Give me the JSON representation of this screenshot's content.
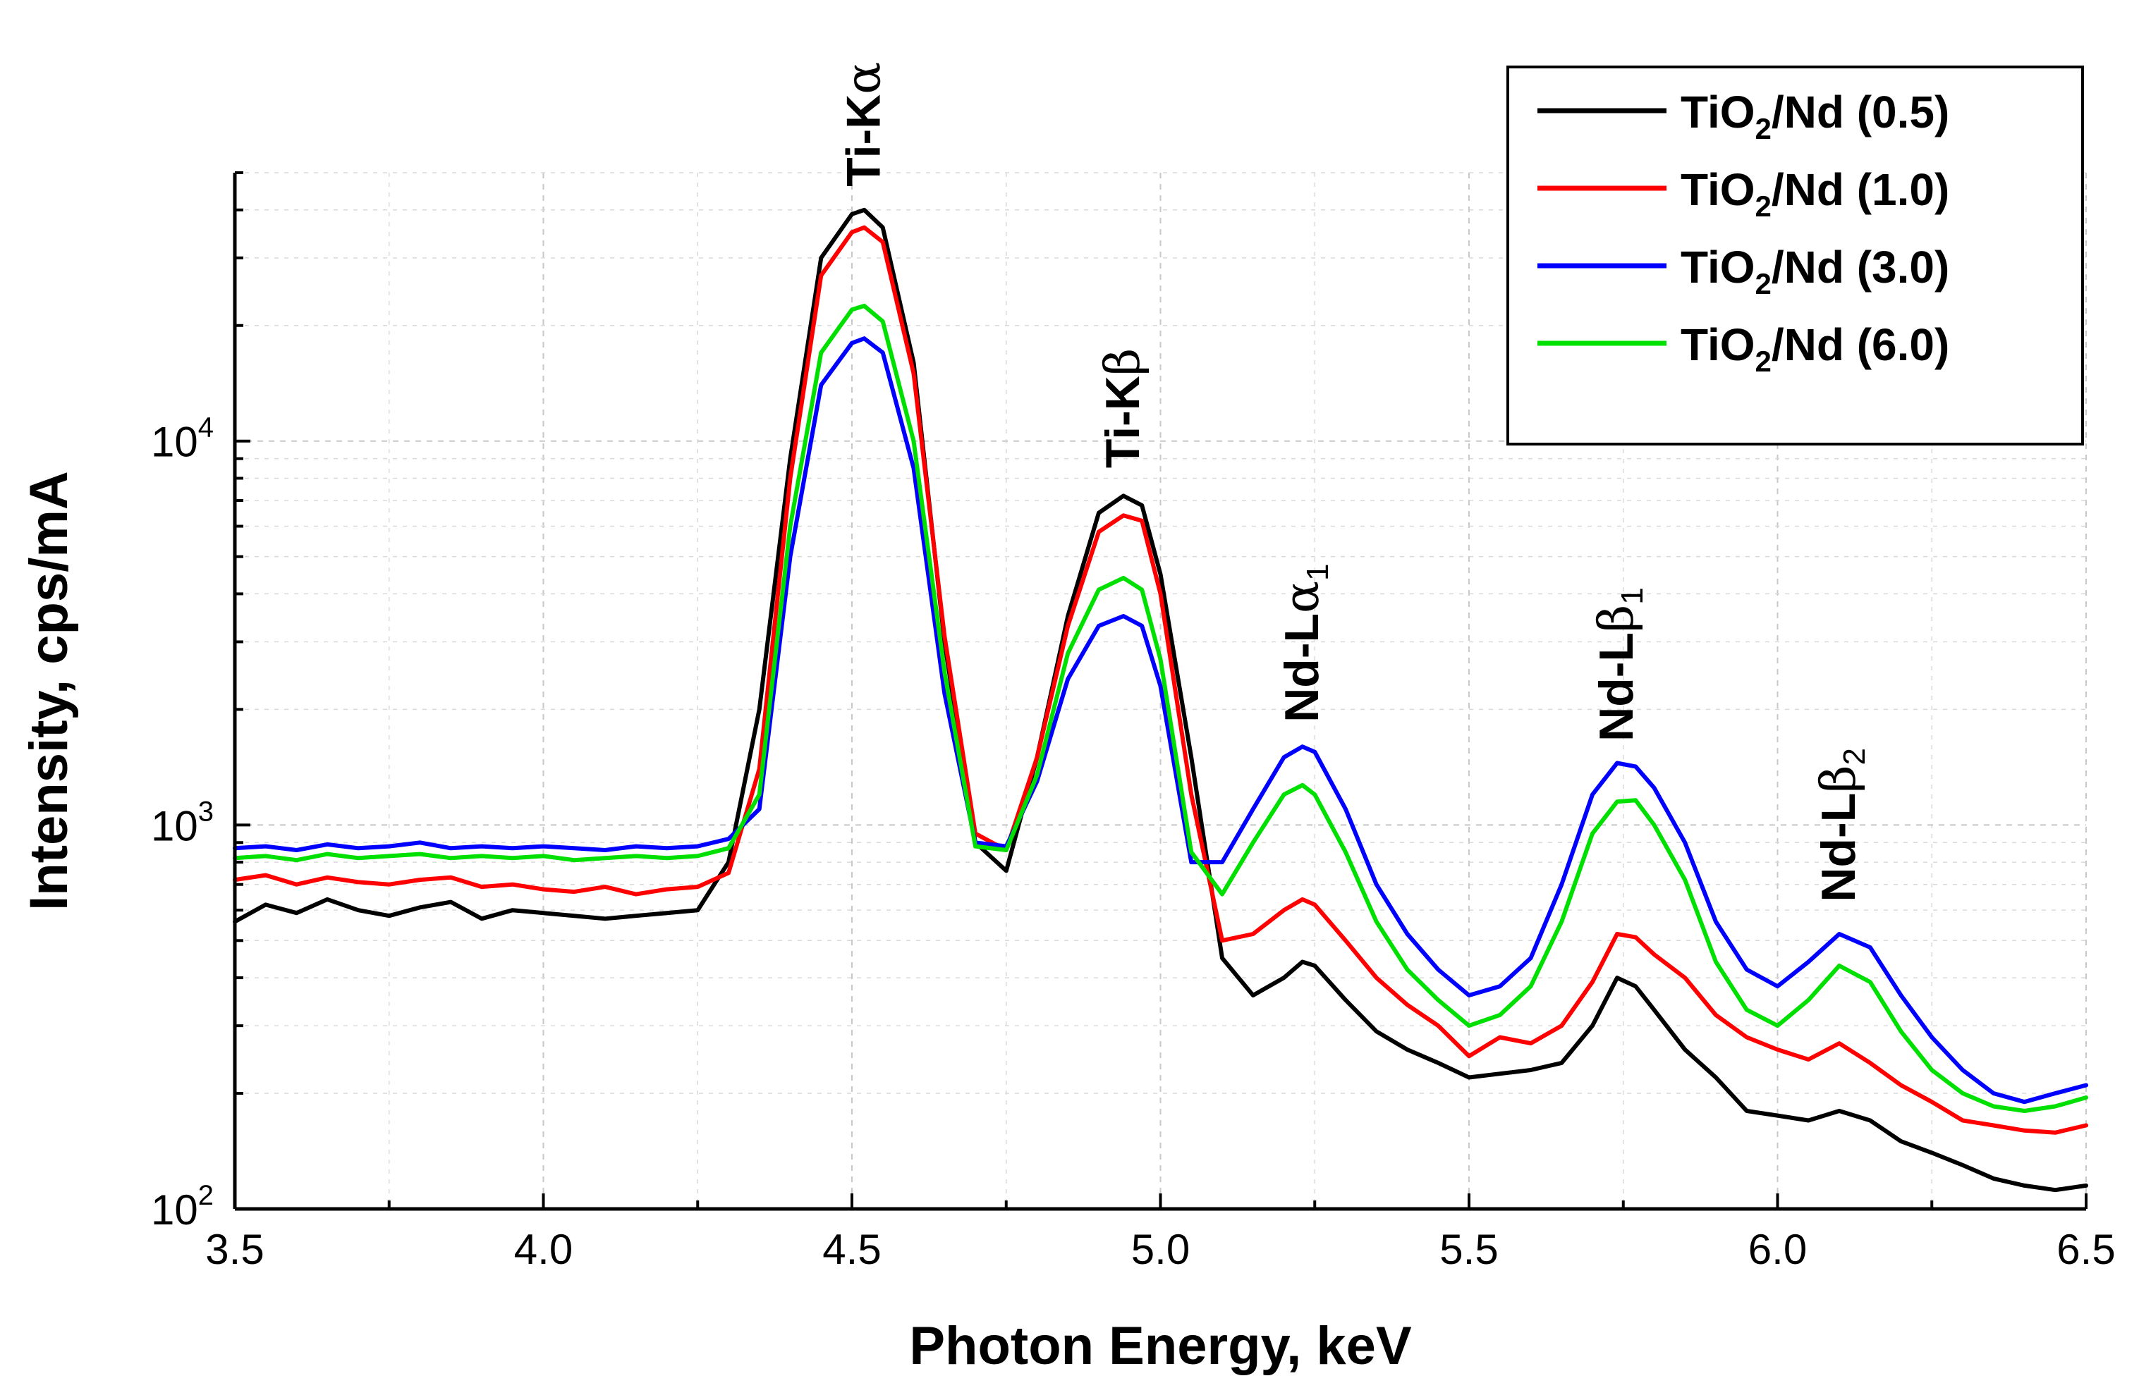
{
  "chart_data": {
    "type": "line",
    "title": "",
    "xlabel": "Photon Energy, keV",
    "ylabel": "Intensity, cps/mA",
    "xlim": [
      3.5,
      6.5
    ],
    "ylim": [
      100,
      50000
    ],
    "yscale": "log",
    "grid": true,
    "legend_position": "top-right",
    "x_ticks": [
      {
        "value": 3.5,
        "label": "3.5"
      },
      {
        "value": 4.0,
        "label": "4.0"
      },
      {
        "value": 4.5,
        "label": "4.5"
      },
      {
        "value": 5.0,
        "label": "5.0"
      },
      {
        "value": 5.5,
        "label": "5.5"
      },
      {
        "value": 6.0,
        "label": "6.0"
      },
      {
        "value": 6.5,
        "label": "6.5"
      }
    ],
    "y_ticks": [
      {
        "value": 100,
        "base": "10",
        "exp": "2"
      },
      {
        "value": 1000,
        "base": "10",
        "exp": "3"
      },
      {
        "value": 10000,
        "base": "10",
        "exp": "4"
      }
    ],
    "annotations": [
      {
        "main": "Ti-K",
        "greek": "α",
        "sub": "",
        "x": 4.52,
        "y": 46000
      },
      {
        "main": "Ti-K",
        "greek": "β",
        "sub": "",
        "x": 4.94,
        "y": 8500
      },
      {
        "main": "Nd-L",
        "greek": "α",
        "sub": "1",
        "x": 5.23,
        "y": 1850
      },
      {
        "main": "Nd-L",
        "greek": "β",
        "sub": "1",
        "x": 5.74,
        "y": 1650
      },
      {
        "main": "Nd-L",
        "greek": "β",
        "sub": "2",
        "x": 6.1,
        "y": 630
      }
    ],
    "x": [
      3.5,
      3.55,
      3.6,
      3.65,
      3.7,
      3.75,
      3.8,
      3.85,
      3.9,
      3.95,
      4.0,
      4.05,
      4.1,
      4.15,
      4.2,
      4.25,
      4.3,
      4.35,
      4.4,
      4.45,
      4.5,
      4.52,
      4.55,
      4.6,
      4.65,
      4.7,
      4.75,
      4.8,
      4.85,
      4.9,
      4.94,
      4.97,
      5.0,
      5.05,
      5.1,
      5.15,
      5.2,
      5.23,
      5.25,
      5.3,
      5.35,
      5.4,
      5.45,
      5.5,
      5.55,
      5.6,
      5.65,
      5.7,
      5.74,
      5.77,
      5.8,
      5.85,
      5.9,
      5.95,
      6.0,
      6.05,
      6.1,
      6.15,
      6.2,
      6.25,
      6.3,
      6.35,
      6.4,
      6.45,
      6.5
    ],
    "series": [
      {
        "name": "TiO2/Nd (0.5)",
        "label_main": "TiO",
        "label_sub": "2",
        "label_rest": "/Nd (0.5)",
        "color": "#000000",
        "values": [
          560,
          620,
          590,
          640,
          600,
          580,
          610,
          630,
          570,
          600,
          590,
          580,
          570,
          580,
          590,
          600,
          800,
          2000,
          9000,
          30000,
          39000,
          40000,
          36000,
          16000,
          3000,
          900,
          760,
          1500,
          3500,
          6500,
          7200,
          6800,
          4500,
          1500,
          450,
          360,
          400,
          440,
          430,
          350,
          290,
          260,
          240,
          220,
          225,
          230,
          240,
          300,
          400,
          380,
          330,
          260,
          220,
          180,
          175,
          170,
          180,
          170,
          150,
          140,
          130,
          120,
          115,
          112,
          115
        ]
      },
      {
        "name": "TiO2/Nd (1.0)",
        "label_main": "TiO",
        "label_sub": "2",
        "label_rest": "/Nd (1.0)",
        "color": "#ff0000",
        "values": [
          720,
          740,
          700,
          730,
          710,
          700,
          720,
          730,
          690,
          700,
          680,
          670,
          690,
          660,
          680,
          690,
          750,
          1400,
          8000,
          27000,
          35000,
          36000,
          33000,
          15000,
          3100,
          950,
          860,
          1500,
          3300,
          5800,
          6400,
          6200,
          4000,
          1200,
          500,
          520,
          600,
          640,
          620,
          500,
          400,
          340,
          300,
          250,
          280,
          270,
          300,
          390,
          520,
          510,
          460,
          400,
          320,
          280,
          260,
          245,
          270,
          240,
          210,
          190,
          170,
          165,
          160,
          158,
          165
        ]
      },
      {
        "name": "TiO2/Nd (3.0)",
        "label_main": "TiO",
        "label_sub": "2",
        "label_rest": "/Nd (3.0)",
        "color": "#0000ff",
        "values": [
          870,
          880,
          860,
          890,
          870,
          880,
          900,
          870,
          880,
          870,
          880,
          870,
          860,
          880,
          870,
          880,
          920,
          1100,
          5000,
          14000,
          18000,
          18500,
          17000,
          8500,
          2200,
          900,
          880,
          1300,
          2400,
          3300,
          3500,
          3300,
          2300,
          800,
          800,
          1100,
          1500,
          1600,
          1550,
          1100,
          700,
          520,
          420,
          360,
          380,
          450,
          700,
          1200,
          1450,
          1420,
          1250,
          900,
          560,
          420,
          380,
          440,
          520,
          480,
          360,
          280,
          230,
          200,
          190,
          200,
          210
        ]
      },
      {
        "name": "TiO2/Nd (6.0)",
        "label_main": "TiO",
        "label_sub": "2",
        "label_rest": "/Nd (6.0)",
        "color": "#00e000",
        "values": [
          820,
          830,
          810,
          840,
          820,
          830,
          840,
          820,
          830,
          820,
          830,
          810,
          820,
          830,
          820,
          830,
          870,
          1200,
          6000,
          17000,
          22000,
          22500,
          20500,
          10000,
          2500,
          880,
          860,
          1350,
          2800,
          4100,
          4400,
          4100,
          2700,
          850,
          660,
          900,
          1200,
          1270,
          1200,
          850,
          560,
          420,
          350,
          300,
          320,
          380,
          560,
          950,
          1150,
          1160,
          1000,
          720,
          440,
          330,
          300,
          350,
          430,
          390,
          290,
          230,
          200,
          185,
          180,
          185,
          195
        ]
      }
    ]
  }
}
